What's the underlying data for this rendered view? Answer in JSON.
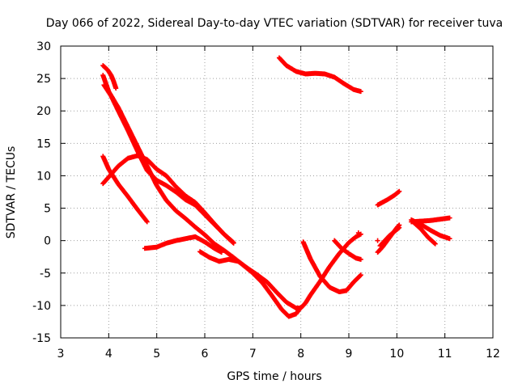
{
  "chart_data": {
    "type": "scatter",
    "title": "Day 066 of 2022, Sidereal Day-to-day VTEC variation (SDTVAR) for receiver tuva",
    "xlabel": "GPS time / hours",
    "ylabel": "SDTVAR / TECUs",
    "xlim": [
      3,
      12
    ],
    "ylim": [
      -15,
      30
    ],
    "xticks": [
      3,
      4,
      5,
      6,
      7,
      8,
      9,
      10,
      11,
      12
    ],
    "yticks": [
      -15,
      -10,
      -5,
      0,
      5,
      10,
      15,
      20,
      25,
      30
    ],
    "grid": true,
    "marker": "plus",
    "color": "#ff0000",
    "tracks": [
      {
        "points": [
          [
            3.88,
            27.0
          ],
          [
            3.98,
            26.3
          ],
          [
            4.05,
            25.5
          ],
          [
            4.1,
            24.6
          ],
          [
            4.15,
            23.5
          ]
        ]
      },
      {
        "points": [
          [
            3.88,
            25.5
          ],
          [
            4.0,
            23.0
          ],
          [
            4.2,
            20.5
          ],
          [
            4.4,
            17.5
          ],
          [
            4.6,
            14.5
          ],
          [
            4.8,
            11.5
          ],
          [
            5.0,
            8.5
          ],
          [
            5.2,
            6.2
          ],
          [
            5.4,
            4.6
          ],
          [
            5.6,
            3.4
          ],
          [
            5.8,
            2.1
          ],
          [
            6.0,
            0.9
          ],
          [
            6.2,
            -0.5
          ],
          [
            6.4,
            -1.5
          ],
          [
            6.6,
            -2.6
          ],
          [
            6.8,
            -3.8
          ],
          [
            7.0,
            -5.0
          ],
          [
            7.2,
            -6.5
          ],
          [
            7.4,
            -8.5
          ],
          [
            7.6,
            -10.6
          ],
          [
            7.75,
            -11.7
          ],
          [
            7.9,
            -11.3
          ],
          [
            8.0,
            -10.3
          ]
        ]
      },
      {
        "points": [
          [
            3.9,
            24.0
          ],
          [
            4.05,
            22.3
          ],
          [
            4.2,
            20.0
          ],
          [
            4.4,
            17.0
          ],
          [
            4.6,
            13.8
          ],
          [
            4.8,
            10.8
          ],
          [
            5.0,
            9.3
          ],
          [
            5.2,
            8.5
          ],
          [
            5.4,
            7.5
          ],
          [
            5.6,
            6.3
          ],
          [
            5.8,
            5.5
          ],
          [
            6.0,
            4.0
          ],
          [
            6.2,
            2.5
          ],
          [
            6.4,
            1.0
          ],
          [
            6.6,
            -0.3
          ]
        ]
      },
      {
        "points": [
          [
            3.88,
            8.8
          ],
          [
            4.0,
            9.8
          ],
          [
            4.2,
            11.5
          ],
          [
            4.4,
            12.7
          ],
          [
            4.6,
            13.1
          ],
          [
            4.8,
            12.5
          ],
          [
            5.0,
            11.0
          ],
          [
            5.2,
            10.0
          ],
          [
            5.4,
            8.3
          ],
          [
            5.6,
            6.9
          ],
          [
            5.8,
            5.9
          ],
          [
            6.0,
            4.3
          ],
          [
            6.2,
            2.6
          ],
          [
            6.4,
            1.0
          ],
          [
            6.6,
            -0.4
          ]
        ]
      },
      {
        "points": [
          [
            3.88,
            13.0
          ],
          [
            4.0,
            11.0
          ],
          [
            4.2,
            8.7
          ],
          [
            4.4,
            6.8
          ],
          [
            4.6,
            4.8
          ],
          [
            4.8,
            2.9
          ]
        ]
      },
      {
        "points": [
          [
            4.75,
            -1.2
          ],
          [
            5.0,
            -1.0
          ],
          [
            5.2,
            -0.4
          ],
          [
            5.4,
            0.0
          ],
          [
            5.6,
            0.3
          ],
          [
            5.8,
            0.6
          ],
          [
            6.0,
            -0.2
          ],
          [
            6.2,
            -1.2
          ],
          [
            6.35,
            -1.8
          ]
        ]
      },
      {
        "points": [
          [
            5.9,
            -1.7
          ],
          [
            6.1,
            -2.6
          ],
          [
            6.3,
            -3.2
          ],
          [
            6.5,
            -2.9
          ],
          [
            6.7,
            -3.2
          ],
          [
            6.9,
            -4.3
          ],
          [
            7.1,
            -5.3
          ],
          [
            7.3,
            -6.4
          ],
          [
            7.5,
            -8.0
          ],
          [
            7.7,
            -9.5
          ],
          [
            7.9,
            -10.4
          ],
          [
            8.0,
            -10.4
          ],
          [
            8.1,
            -9.6
          ],
          [
            8.2,
            -8.4
          ],
          [
            8.4,
            -6.3
          ],
          [
            8.6,
            -4.0
          ],
          [
            8.8,
            -2.0
          ],
          [
            9.0,
            -0.3
          ],
          [
            9.15,
            0.6
          ],
          [
            9.25,
            1.0
          ]
        ]
      },
      {
        "points": [
          [
            8.05,
            -0.2
          ],
          [
            8.2,
            -2.8
          ],
          [
            8.4,
            -5.5
          ],
          [
            8.6,
            -7.2
          ],
          [
            8.8,
            -7.9
          ],
          [
            8.95,
            -7.7
          ],
          [
            9.1,
            -6.4
          ],
          [
            9.25,
            -5.3
          ]
        ]
      },
      {
        "points": [
          [
            8.7,
            0.0
          ],
          [
            8.85,
            -1.2
          ],
          [
            9.0,
            -2.0
          ],
          [
            9.15,
            -2.7
          ],
          [
            9.25,
            -2.9
          ]
        ]
      },
      {
        "points": [
          [
            7.55,
            28.2
          ],
          [
            7.7,
            27.0
          ],
          [
            7.9,
            26.1
          ],
          [
            8.1,
            25.7
          ],
          [
            8.3,
            25.8
          ],
          [
            8.5,
            25.7
          ],
          [
            8.7,
            25.2
          ],
          [
            8.9,
            24.2
          ],
          [
            9.1,
            23.3
          ],
          [
            9.25,
            23.0
          ]
        ]
      },
      {
        "points": [
          [
            9.6,
            5.5
          ],
          [
            9.8,
            6.3
          ],
          [
            9.95,
            7.0
          ],
          [
            10.05,
            7.6
          ]
        ]
      },
      {
        "points": [
          [
            9.6,
            -1.8
          ],
          [
            9.7,
            -1.0
          ],
          [
            9.8,
            0.0
          ],
          [
            9.9,
            1.0
          ],
          [
            10.0,
            2.0
          ],
          [
            10.05,
            2.4
          ]
        ]
      },
      {
        "points": [
          [
            9.65,
            -0.8
          ],
          [
            9.75,
            0.0
          ],
          [
            9.85,
            0.8
          ],
          [
            9.95,
            1.4
          ],
          [
            10.05,
            2.0
          ]
        ]
      },
      {
        "points": [
          [
            10.3,
            2.9
          ],
          [
            10.5,
            3.0
          ],
          [
            10.7,
            3.1
          ],
          [
            10.9,
            3.3
          ],
          [
            11.1,
            3.5
          ]
        ]
      },
      {
        "points": [
          [
            10.3,
            3.2
          ],
          [
            10.5,
            2.5
          ],
          [
            10.7,
            1.6
          ],
          [
            10.9,
            0.8
          ],
          [
            11.1,
            0.3
          ]
        ]
      },
      {
        "points": [
          [
            10.35,
            2.8
          ],
          [
            10.5,
            1.8
          ],
          [
            10.65,
            0.5
          ],
          [
            10.8,
            -0.5
          ]
        ]
      }
    ],
    "isolated_points": [
      [
        9.6,
        0.0
      ],
      [
        9.2,
        1.2
      ]
    ]
  }
}
